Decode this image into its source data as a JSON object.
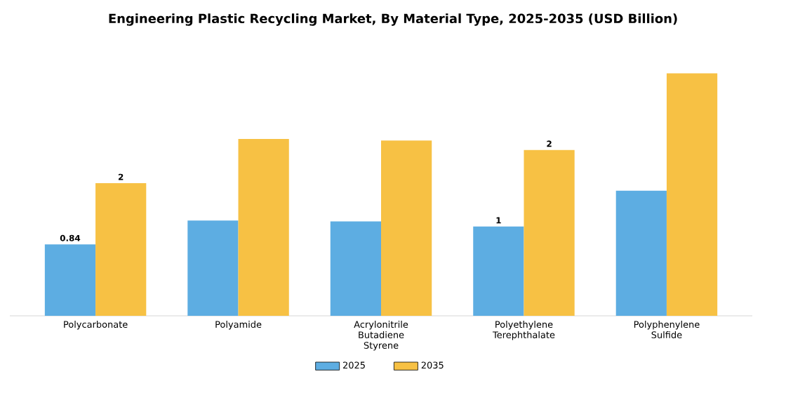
{
  "chart_data": {
    "type": "bar",
    "title": "Engineering Plastic Recycling Market, By Material Type, 2025-2035 (USD Billion)",
    "categories": [
      "Polycarbonate",
      "Polyamide",
      "Acrylonitrile Butadiene Styrene",
      "Polyethylene Terephthalate",
      "Polyphenylene Sulfide"
    ],
    "series": [
      {
        "name": "2025",
        "color": "#5dade2",
        "values": [
          0.84,
          1.12,
          1.11,
          1.05,
          1.47
        ],
        "value_labels": [
          "0.84",
          null,
          null,
          "1",
          null
        ]
      },
      {
        "name": "2035",
        "color": "#f7c144",
        "values": [
          1.56,
          2.08,
          2.06,
          1.95,
          2.85
        ],
        "value_labels": [
          "2",
          null,
          null,
          "2",
          null
        ]
      }
    ],
    "legend": "bottom"
  }
}
